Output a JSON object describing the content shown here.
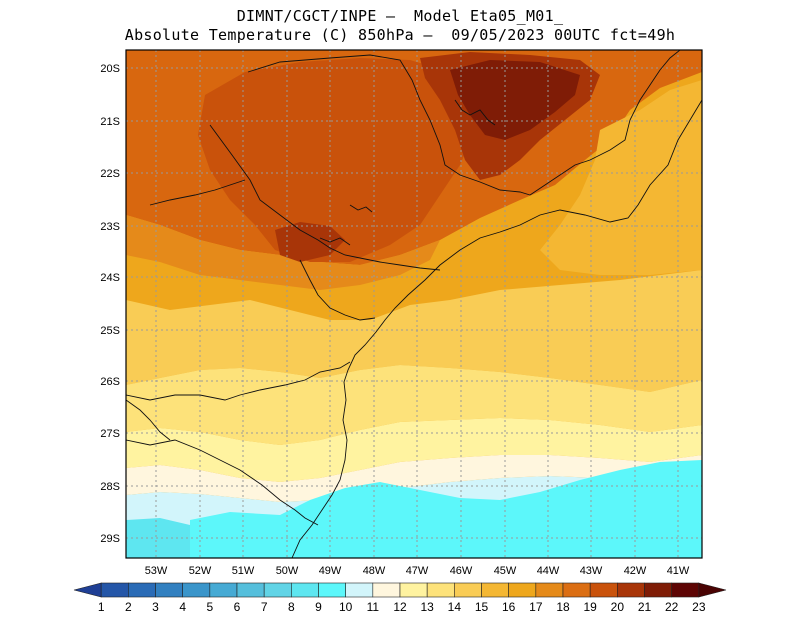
{
  "header": {
    "line1": "DIMNT/CGCT/INPE –  Model Eta05_M01_",
    "line2": "Absolute Temperature (C) 850hPa –  09/05/2023 00UTC fct=49h"
  },
  "map": {
    "lat_labels": [
      "20S",
      "21S",
      "22S",
      "23S",
      "24S",
      "25S",
      "26S",
      "27S",
      "28S",
      "29S"
    ],
    "lon_labels": [
      "53W",
      "52W",
      "51W",
      "50W",
      "49W",
      "48W",
      "47W",
      "46W",
      "45W",
      "44W",
      "43W",
      "42W",
      "41W"
    ],
    "lat_values": [
      -20,
      -21,
      -22,
      -23,
      -24,
      -25,
      -26,
      -27,
      -28,
      -29
    ],
    "lon_values": [
      -53,
      -52,
      -51,
      -50,
      -49,
      -48,
      -47,
      -46,
      -45,
      -44,
      -43,
      -42,
      -41
    ],
    "lat_range": [
      -29.45,
      -19.8
    ],
    "lon_range": [
      -53.8,
      -40.6
    ],
    "variable": "Absolute Temperature",
    "units": "C",
    "level": "850hPa"
  },
  "colorbar": {
    "labels": [
      "1",
      "2",
      "3",
      "4",
      "5",
      "6",
      "7",
      "8",
      "9",
      "10",
      "11",
      "12",
      "13",
      "14",
      "15",
      "16",
      "17",
      "18",
      "19",
      "20",
      "21",
      "22",
      "23"
    ],
    "colors": [
      "#1f3f95",
      "#2456a8",
      "#2a6bb6",
      "#3280c0",
      "#3a95ca",
      "#46aad4",
      "#55bfdc",
      "#61d4e6",
      "#5ee6f0",
      "#5cf7fa",
      "#d2f5fb",
      "#fff6de",
      "#fff3a0",
      "#fde27a",
      "#f9cc55",
      "#f4b733",
      "#eea71c",
      "#e58a1a",
      "#db6e13",
      "#c9520b",
      "#a83508",
      "#7f1c06",
      "#5e0504",
      "#4a0303"
    ]
  }
}
